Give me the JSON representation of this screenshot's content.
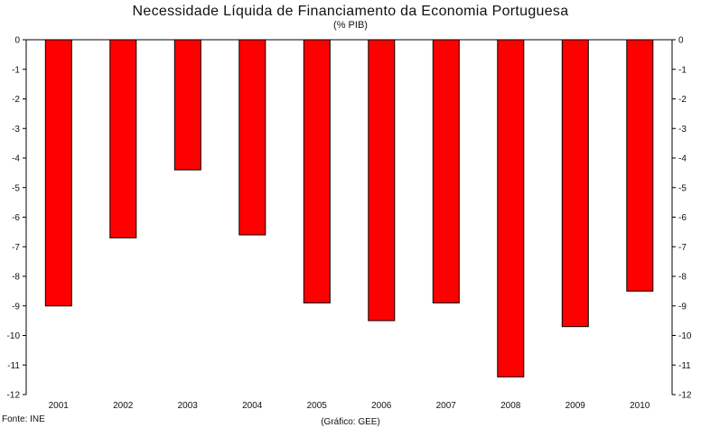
{
  "chart_data": {
    "type": "bar",
    "title": "Necessidade Líquida de Financiamento da Economia Portuguesa",
    "subtitle": "(% PIB)",
    "categories": [
      "2001",
      "2002",
      "2003",
      "2004",
      "2005",
      "2006",
      "2007",
      "2008",
      "2009",
      "2010"
    ],
    "series": [
      {
        "values": [
          -9.0,
          -6.7,
          -4.4,
          -6.6,
          -8.9,
          -9.5,
          -8.9,
          -11.4,
          -9.7,
          -8.5
        ],
        "color": "#ff0000"
      }
    ],
    "ylim": [
      -12,
      0
    ],
    "yticks": [
      0,
      -1,
      -2,
      -3,
      -4,
      -5,
      -6,
      -7,
      -8,
      -9,
      -10,
      -11,
      -12
    ],
    "grid": false,
    "secondary_y_axis": true
  },
  "notes": {
    "source": "Fonte: INE",
    "credit": "(Gráfico: GEE)"
  }
}
